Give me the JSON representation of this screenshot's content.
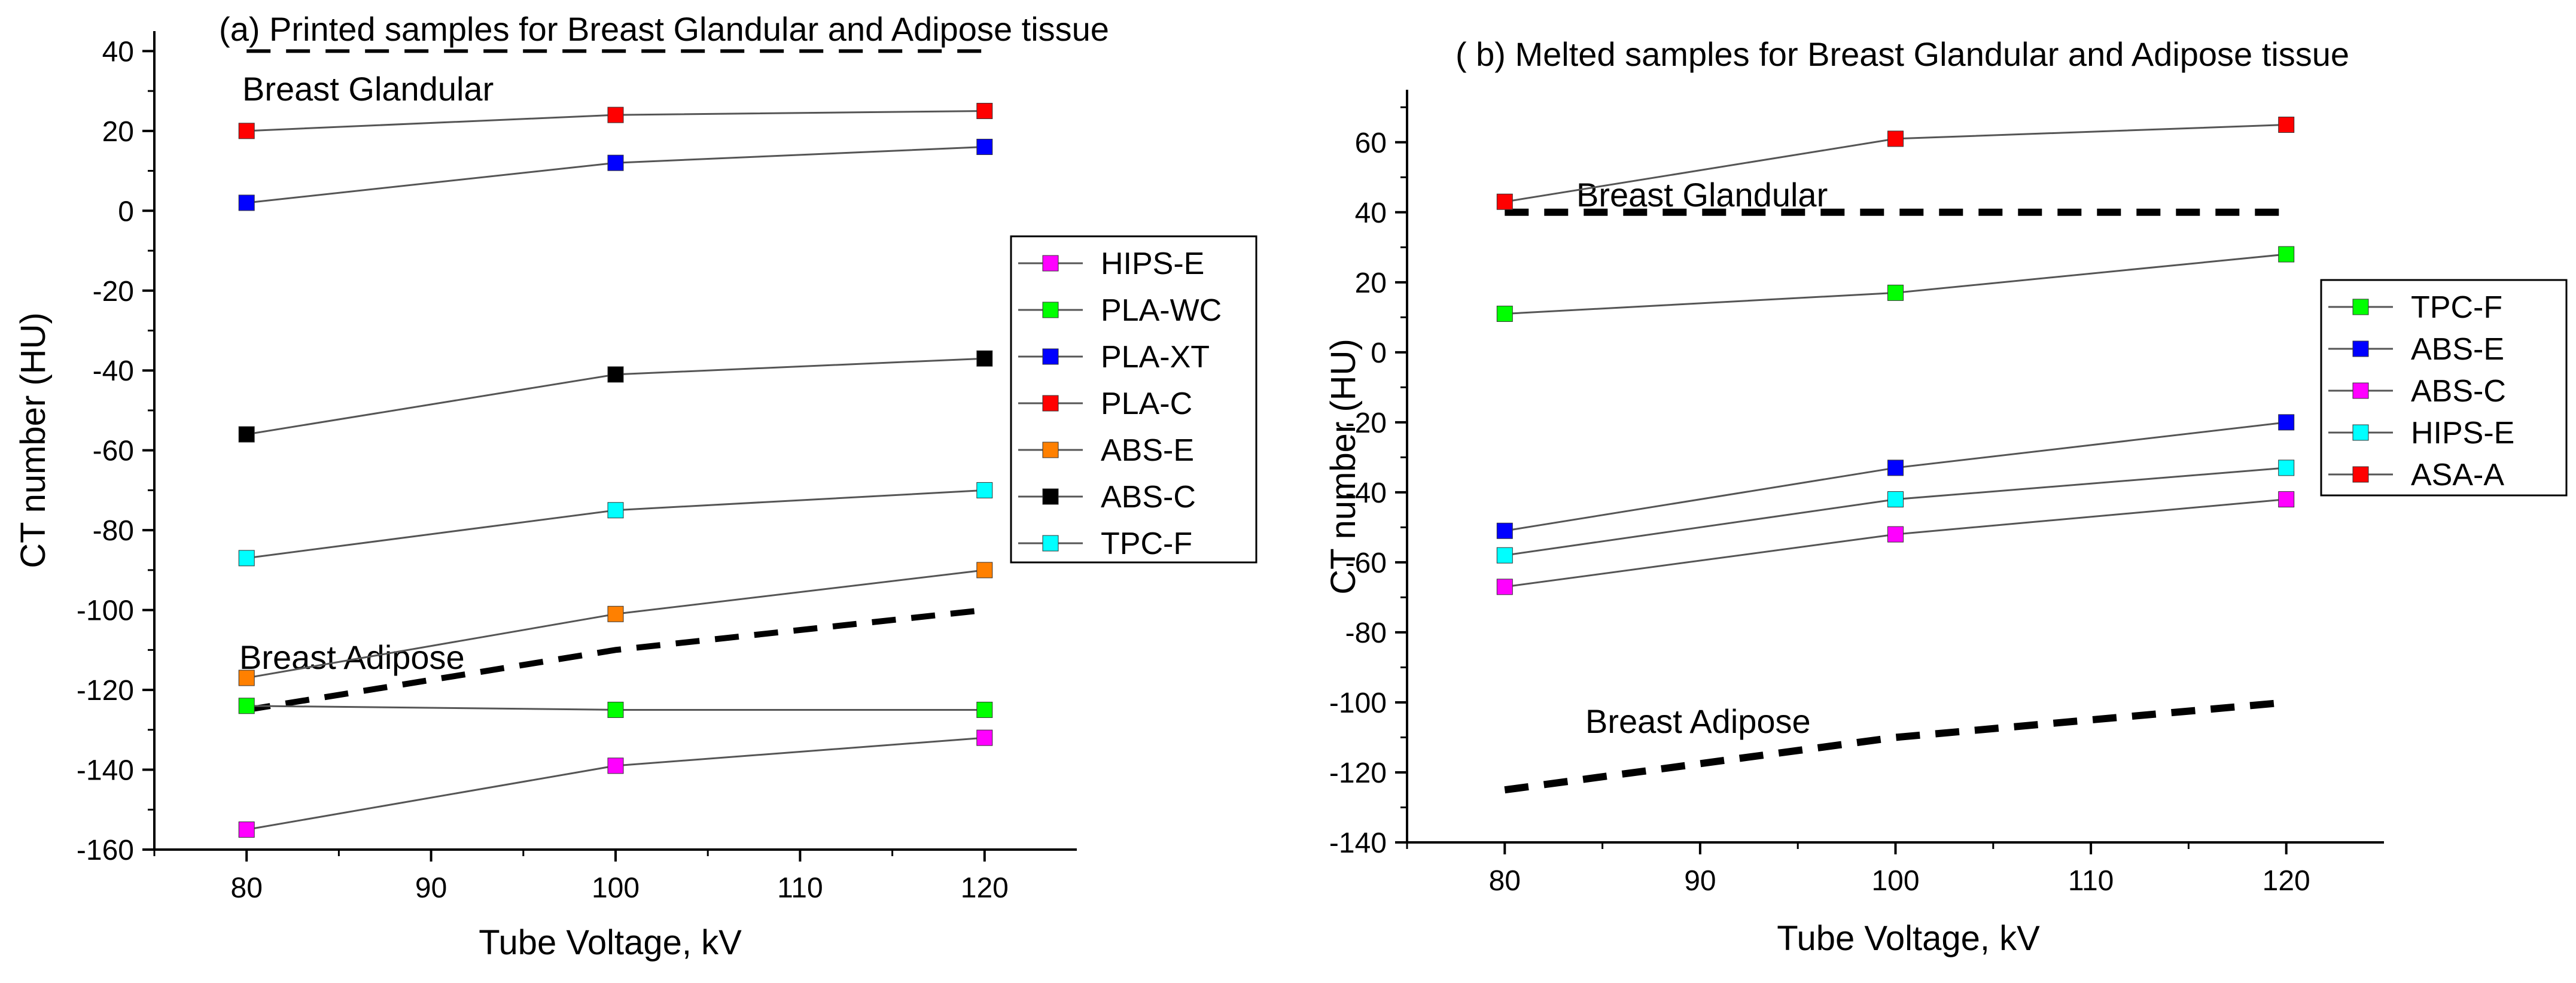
{
  "chart_data": [
    {
      "type": "line",
      "title": "(a) Printed samples for Breast Glandular and Adipose tissue",
      "xlabel": "Tube Voltage,  kV",
      "ylabel": "CT number (HU)",
      "xlim": [
        75,
        125
      ],
      "ylim": [
        -160,
        45
      ],
      "x_ticks": [
        "80",
        "90",
        "100",
        "110",
        "120"
      ],
      "y_ticks": [
        "-160",
        "-140",
        "-120",
        "-100",
        "-80",
        "-60",
        "-40",
        "-20",
        "0",
        "20",
        "40"
      ],
      "x": [
        80,
        100,
        120
      ],
      "series": [
        {
          "name": "HIPS-E",
          "color": "#ff00ff",
          "values": [
            -155,
            -139,
            -132
          ]
        },
        {
          "name": "PLA-WC",
          "color": "#00ff00",
          "values": [
            -124,
            -125,
            -125
          ]
        },
        {
          "name": "PLA-XT",
          "color": "#0000ff",
          "values": [
            2,
            12,
            16
          ]
        },
        {
          "name": "PLA-C",
          "color": "#ff0000",
          "values": [
            20,
            24,
            25
          ]
        },
        {
          "name": "ABS-E",
          "color": "#ff8000",
          "values": [
            -117,
            -101,
            -90
          ]
        },
        {
          "name": "ABS-C",
          "color": "#000000",
          "values": [
            -56,
            -41,
            -37
          ]
        },
        {
          "name": "TPC-F",
          "color": "#00ffff",
          "values": [
            -87,
            -75,
            -70
          ]
        }
      ],
      "references": [
        {
          "label": "Breast Glandular",
          "values": [
            40,
            40,
            40
          ]
        },
        {
          "label": "Breast Adipose",
          "values": [
            -125,
            -110,
            -100
          ]
        }
      ],
      "legend_position": "right-middle"
    },
    {
      "type": "line",
      "title": "( b) Melted samples for Breast Glandular and Adipose tissue",
      "xlabel": "Tube Voltage,  kV",
      "ylabel": "CT number (HU)",
      "xlim": [
        75,
        125
      ],
      "ylim": [
        -140,
        75
      ],
      "x_ticks": [
        "80",
        "90",
        "100",
        "110",
        "120"
      ],
      "y_ticks": [
        "-140",
        "-120",
        "-100",
        "-80",
        "-60",
        "-40",
        "-20",
        "0",
        "20",
        "40",
        "60"
      ],
      "x": [
        80,
        100,
        120
      ],
      "series": [
        {
          "name": "TPC-F",
          "color": "#00ff00",
          "values": [
            11,
            17,
            28
          ]
        },
        {
          "name": "ABS-E",
          "color": "#0000ff",
          "values": [
            -51,
            -33,
            -20
          ]
        },
        {
          "name": "ABS-C",
          "color": "#ff00ff",
          "values": [
            -67,
            -52,
            -42
          ]
        },
        {
          "name": "HIPS-E",
          "color": "#00ffff",
          "values": [
            -58,
            -42,
            -33
          ]
        },
        {
          "name": "ASA-A",
          "color": "#ff0000",
          "values": [
            43,
            61,
            65
          ]
        }
      ],
      "references": [
        {
          "label": "Breast Glandular",
          "values": [
            40,
            40,
            40
          ]
        },
        {
          "label": "Breast Adipose",
          "values": [
            -125,
            -110,
            -100
          ]
        }
      ],
      "legend_position": "right-upper"
    }
  ]
}
